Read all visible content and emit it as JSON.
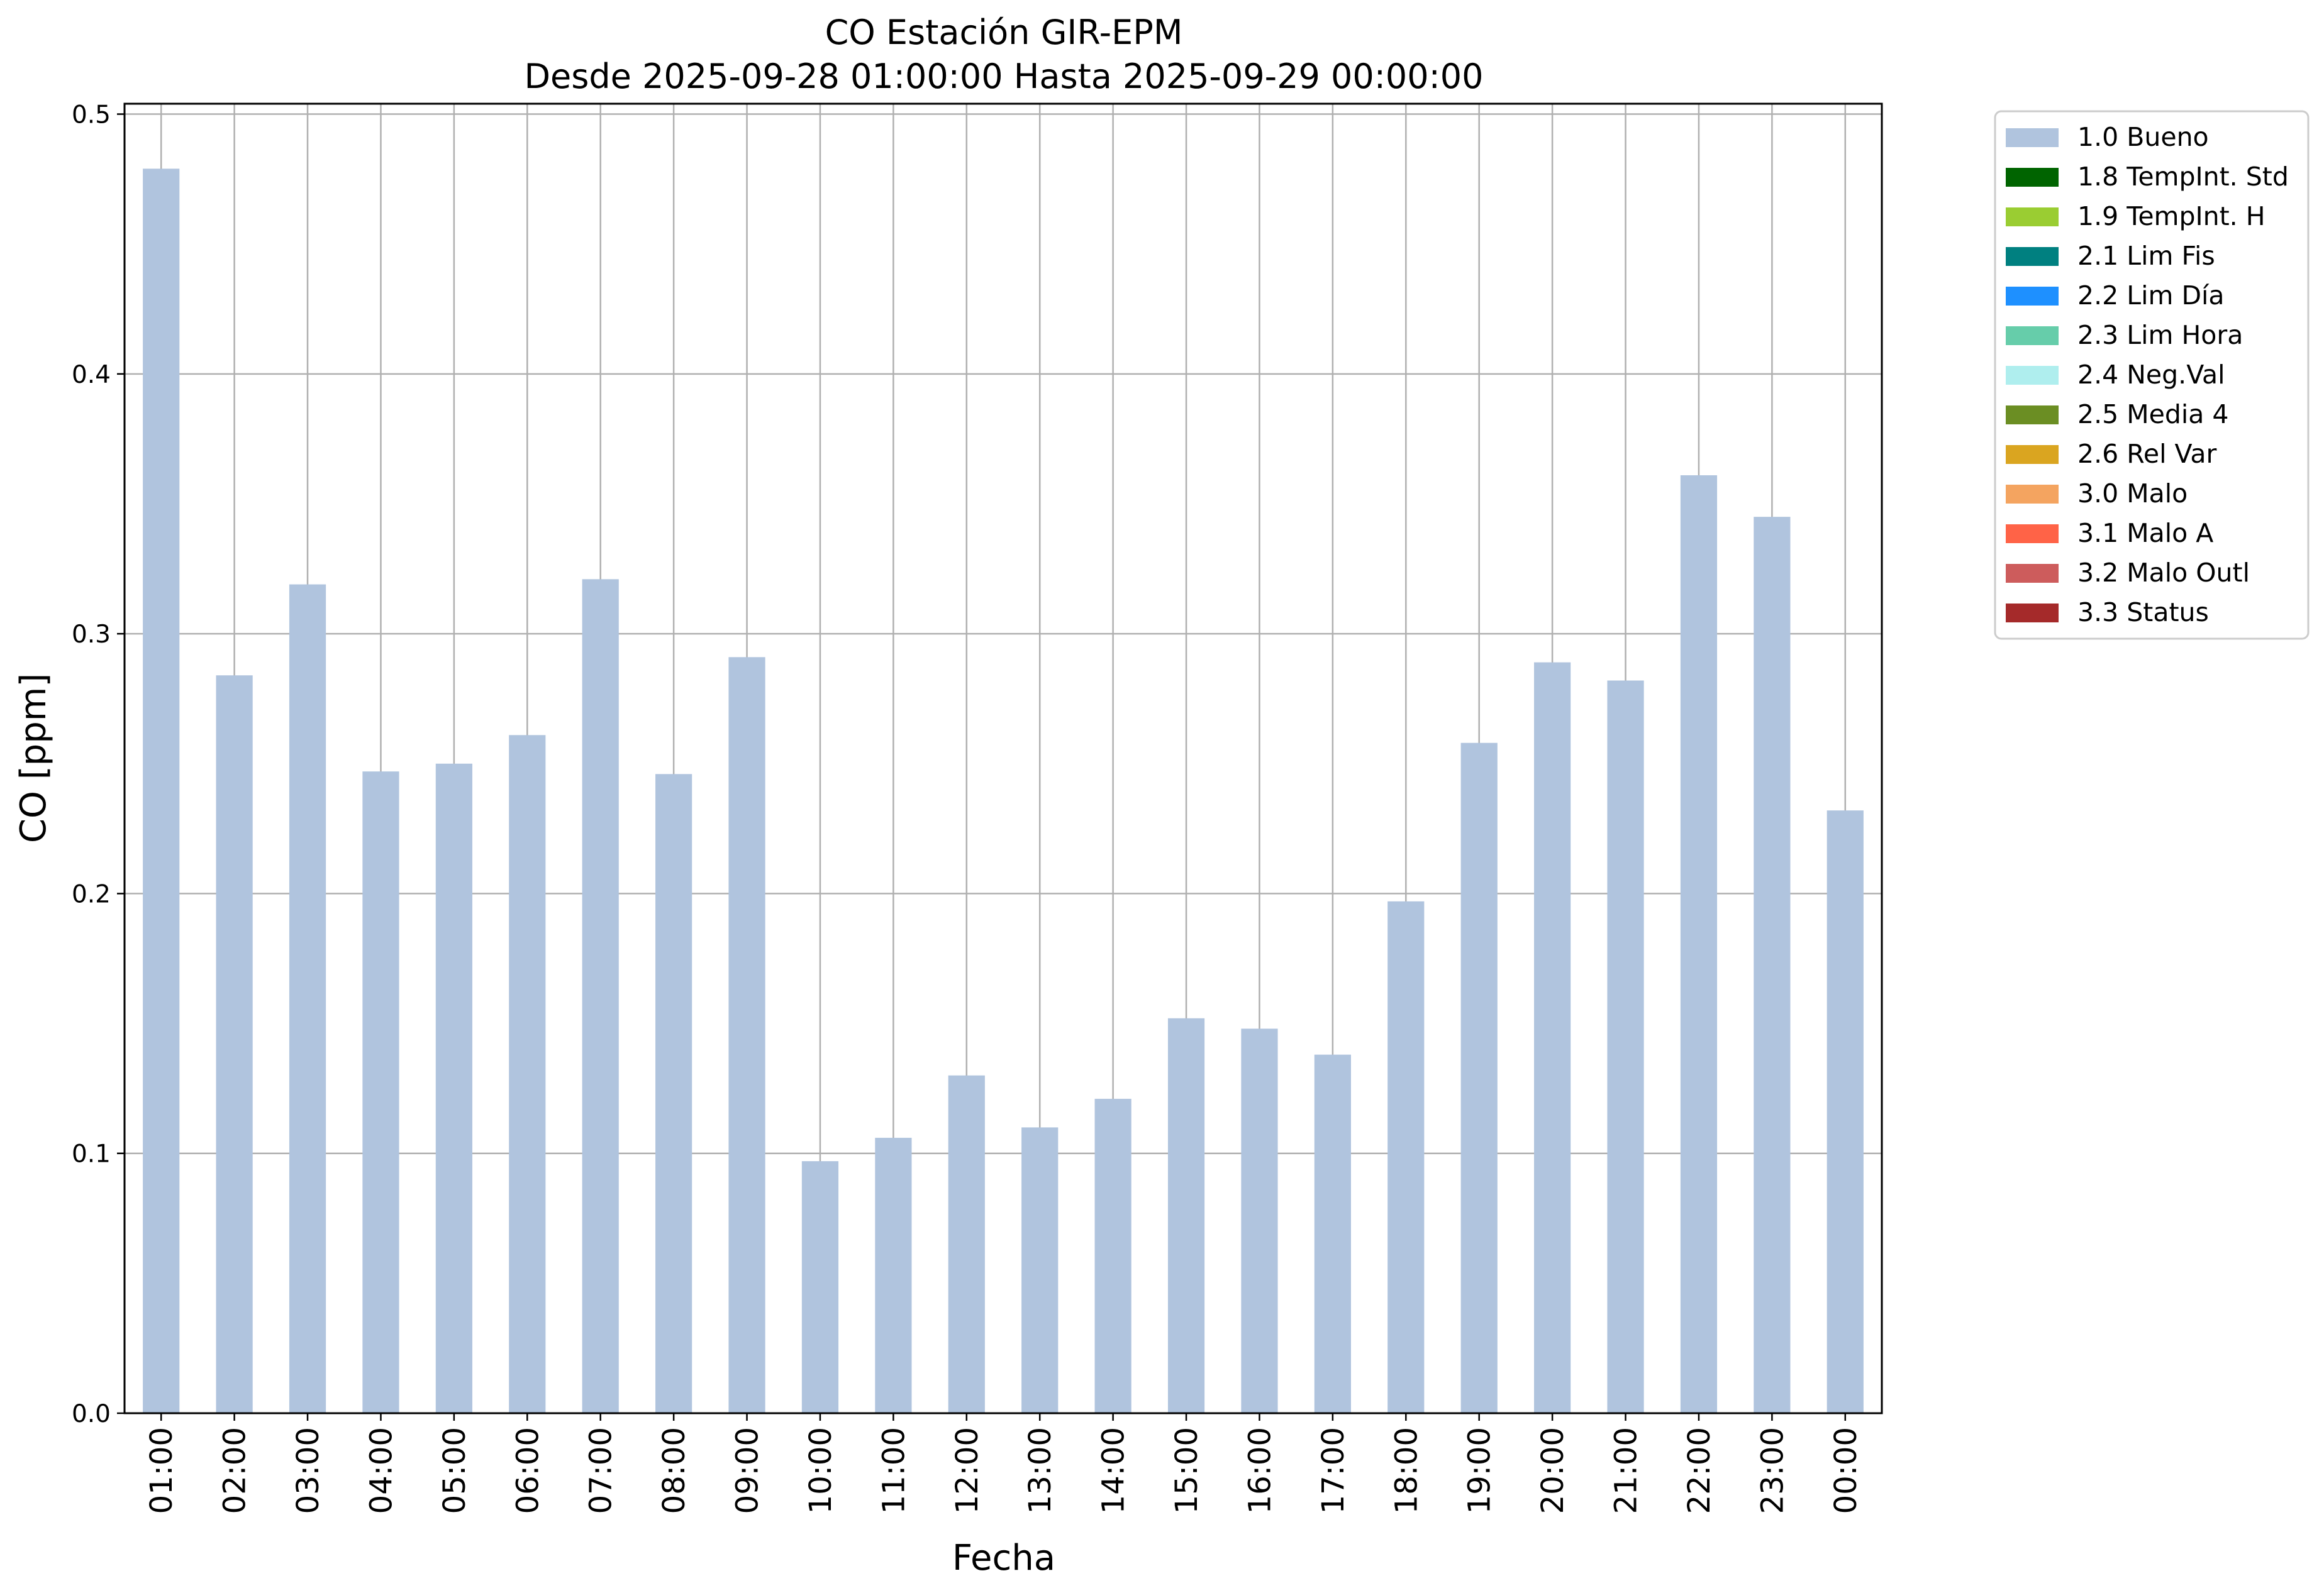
{
  "chart_data": {
    "type": "bar",
    "title_line1": "CO Estación GIR-EPM",
    "title_line2": "Desde 2025-09-28 01:00:00 Hasta 2025-09-29 00:00:00",
    "xlabel": "Fecha",
    "ylabel": "CO [ppm]",
    "ylim": [
      0,
      0.504
    ],
    "yticks": [
      0.0,
      0.1,
      0.2,
      0.3,
      0.4,
      0.5
    ],
    "ytick_labels": [
      "0.0",
      "0.1",
      "0.2",
      "0.3",
      "0.4",
      "0.5"
    ],
    "grid": true,
    "legend_position": "outside-top-right",
    "categories": [
      "01:00",
      "02:00",
      "03:00",
      "04:00",
      "05:00",
      "06:00",
      "07:00",
      "08:00",
      "09:00",
      "10:00",
      "11:00",
      "12:00",
      "13:00",
      "14:00",
      "15:00",
      "16:00",
      "17:00",
      "18:00",
      "19:00",
      "20:00",
      "21:00",
      "22:00",
      "23:00",
      "00:00"
    ],
    "series": [
      {
        "name": "1.0 Bueno",
        "color": "#b0c4de",
        "values": [
          0.479,
          0.284,
          0.319,
          0.247,
          0.25,
          0.261,
          0.321,
          0.246,
          0.291,
          0.097,
          0.106,
          0.13,
          0.11,
          0.121,
          0.152,
          0.148,
          0.138,
          0.197,
          0.258,
          0.289,
          0.282,
          0.361,
          0.345,
          0.232
        ]
      }
    ],
    "legend": [
      {
        "label": "1.0 Bueno",
        "color": "#b0c4de"
      },
      {
        "label": "1.8 TempInt. Std",
        "color": "#006400"
      },
      {
        "label": "1.9 TempInt. H",
        "color": "#9acd32"
      },
      {
        "label": "2.1 Lim Fis",
        "color": "#008080"
      },
      {
        "label": "2.2 Lim Día",
        "color": "#1e90ff"
      },
      {
        "label": "2.3 Lim Hora",
        "color": "#66cdaa"
      },
      {
        "label": "2.4 Neg.Val",
        "color": "#afeeee"
      },
      {
        "label": "2.5 Media 4",
        "color": "#6b8e23"
      },
      {
        "label": "2.6 Rel Var",
        "color": "#daa520"
      },
      {
        "label": "3.0 Malo",
        "color": "#f4a460"
      },
      {
        "label": "3.1 Malo A",
        "color": "#ff6347"
      },
      {
        "label": "3.2 Malo Outl",
        "color": "#cd5c5c"
      },
      {
        "label": "3.3 Status",
        "color": "#a52a2a"
      }
    ]
  }
}
